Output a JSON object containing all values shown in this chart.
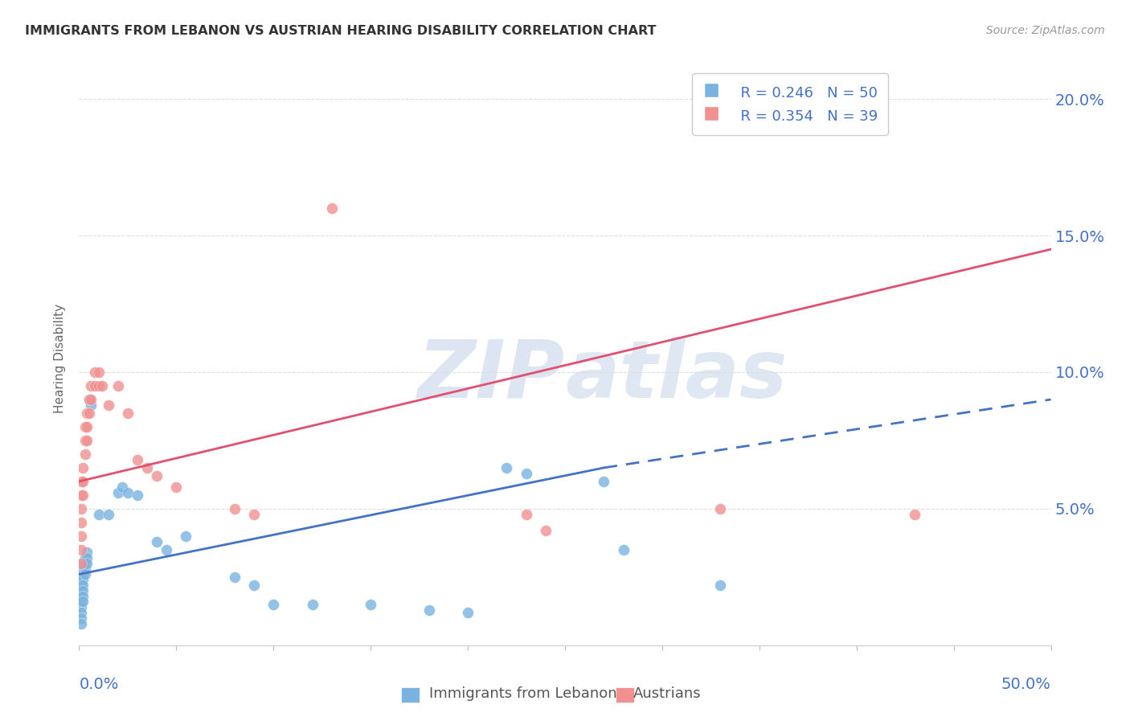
{
  "title": "IMMIGRANTS FROM LEBANON VS AUSTRIAN HEARING DISABILITY CORRELATION CHART",
  "source": "Source: ZipAtlas.com",
  "ylabel": "Hearing Disability",
  "legend_blue_label": "Immigrants from Lebanon",
  "legend_pink_label": "Austrians",
  "legend_blue_R": "0.246",
  "legend_blue_N": "50",
  "legend_pink_R": "0.354",
  "legend_pink_N": "39",
  "blue_dots": [
    [
      0.001,
      0.03
    ],
    [
      0.001,
      0.028
    ],
    [
      0.001,
      0.026
    ],
    [
      0.001,
      0.024
    ],
    [
      0.001,
      0.022
    ],
    [
      0.001,
      0.02
    ],
    [
      0.001,
      0.018
    ],
    [
      0.001,
      0.016
    ],
    [
      0.001,
      0.014
    ],
    [
      0.001,
      0.012
    ],
    [
      0.001,
      0.01
    ],
    [
      0.001,
      0.008
    ],
    [
      0.002,
      0.03
    ],
    [
      0.002,
      0.028
    ],
    [
      0.002,
      0.026
    ],
    [
      0.002,
      0.024
    ],
    [
      0.002,
      0.022
    ],
    [
      0.002,
      0.02
    ],
    [
      0.002,
      0.018
    ],
    [
      0.002,
      0.016
    ],
    [
      0.003,
      0.032
    ],
    [
      0.003,
      0.03
    ],
    [
      0.003,
      0.028
    ],
    [
      0.003,
      0.026
    ],
    [
      0.004,
      0.034
    ],
    [
      0.004,
      0.032
    ],
    [
      0.004,
      0.03
    ],
    [
      0.005,
      0.09
    ],
    [
      0.006,
      0.088
    ],
    [
      0.01,
      0.048
    ],
    [
      0.015,
      0.048
    ],
    [
      0.02,
      0.056
    ],
    [
      0.022,
      0.058
    ],
    [
      0.025,
      0.056
    ],
    [
      0.03,
      0.055
    ],
    [
      0.04,
      0.038
    ],
    [
      0.045,
      0.035
    ],
    [
      0.055,
      0.04
    ],
    [
      0.08,
      0.025
    ],
    [
      0.09,
      0.022
    ],
    [
      0.1,
      0.015
    ],
    [
      0.12,
      0.015
    ],
    [
      0.15,
      0.015
    ],
    [
      0.18,
      0.013
    ],
    [
      0.2,
      0.012
    ],
    [
      0.22,
      0.065
    ],
    [
      0.23,
      0.063
    ],
    [
      0.27,
      0.06
    ],
    [
      0.28,
      0.035
    ],
    [
      0.33,
      0.022
    ]
  ],
  "pink_dots": [
    [
      0.001,
      0.06
    ],
    [
      0.001,
      0.055
    ],
    [
      0.001,
      0.05
    ],
    [
      0.001,
      0.045
    ],
    [
      0.001,
      0.04
    ],
    [
      0.001,
      0.035
    ],
    [
      0.001,
      0.03
    ],
    [
      0.002,
      0.065
    ],
    [
      0.002,
      0.06
    ],
    [
      0.002,
      0.055
    ],
    [
      0.003,
      0.08
    ],
    [
      0.003,
      0.075
    ],
    [
      0.003,
      0.07
    ],
    [
      0.004,
      0.085
    ],
    [
      0.004,
      0.08
    ],
    [
      0.004,
      0.075
    ],
    [
      0.005,
      0.09
    ],
    [
      0.005,
      0.085
    ],
    [
      0.006,
      0.095
    ],
    [
      0.006,
      0.09
    ],
    [
      0.008,
      0.1
    ],
    [
      0.008,
      0.095
    ],
    [
      0.01,
      0.1
    ],
    [
      0.01,
      0.095
    ],
    [
      0.012,
      0.095
    ],
    [
      0.015,
      0.088
    ],
    [
      0.02,
      0.095
    ],
    [
      0.025,
      0.085
    ],
    [
      0.03,
      0.068
    ],
    [
      0.035,
      0.065
    ],
    [
      0.04,
      0.062
    ],
    [
      0.05,
      0.058
    ],
    [
      0.08,
      0.05
    ],
    [
      0.09,
      0.048
    ],
    [
      0.13,
      0.16
    ],
    [
      0.23,
      0.048
    ],
    [
      0.24,
      0.042
    ],
    [
      0.33,
      0.05
    ],
    [
      0.43,
      0.048
    ]
  ],
  "blue_solid_line": {
    "x_start": 0.0,
    "y_start": 0.026,
    "x_end": 0.27,
    "y_end": 0.065
  },
  "blue_dashed_line": {
    "x_start": 0.27,
    "y_start": 0.065,
    "x_end": 0.5,
    "y_end": 0.09
  },
  "pink_line": {
    "x_start": 0.0,
    "y_start": 0.06,
    "x_end": 0.5,
    "y_end": 0.145
  },
  "xlim": [
    0.0,
    0.5
  ],
  "ylim": [
    0.0,
    0.21
  ],
  "yticks": [
    0.05,
    0.1,
    0.15,
    0.2
  ],
  "ytick_labels": [
    "5.0%",
    "10.0%",
    "15.0%",
    "20.0%"
  ],
  "xtick_label_left": "0.0%",
  "xtick_label_right": "50.0%",
  "blue_color": "#7ab3e0",
  "pink_color": "#f09090",
  "blue_line_color": "#4472c4",
  "pink_line_color": "#e05070",
  "grid_color": "#dddddd",
  "axis_label_color": "#4472c4",
  "title_color": "#333333",
  "source_color": "#999999",
  "ylabel_color": "#666666",
  "background_color": "#ffffff"
}
